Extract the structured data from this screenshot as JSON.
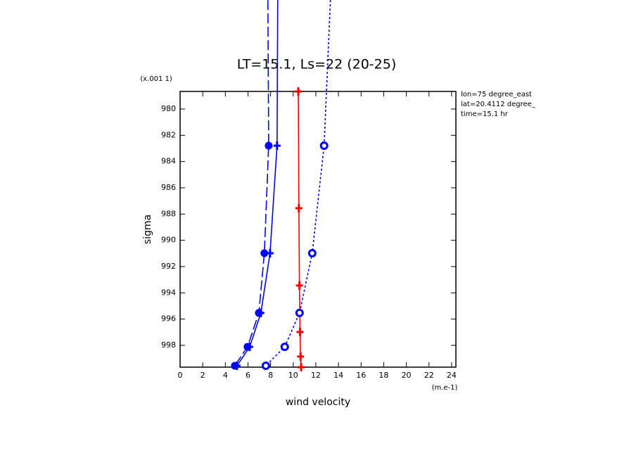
{
  "chart_data": {
    "type": "profile",
    "title": "LT=15.1, Ls=22 (20-25)",
    "x_label": "wind velocity",
    "y_label": "sigma",
    "x_unit": "(m.e-1)",
    "y_unit": "(x.001 1)",
    "annotations": [
      "lon=75 degree_east",
      "lat=20.4112 degree_",
      "time=15.1 hr"
    ],
    "xlim": [
      0,
      24.38
    ],
    "xticks": [
      0,
      2,
      4,
      6,
      8,
      10,
      12,
      14,
      16,
      18,
      20,
      22,
      24
    ],
    "ylim": [
      999.66,
      978.66
    ],
    "yticks": [
      980,
      982,
      984,
      986,
      988,
      990,
      992,
      994,
      996,
      998
    ],
    "series": [
      {
        "color": "#ff0000",
        "linestyle": "solid",
        "marker": "plus",
        "sigma": [
          978.66,
          987.55,
          993.44,
          996.98,
          998.85,
          999.66
        ],
        "values": [
          10.45,
          10.5,
          10.55,
          10.6,
          10.65,
          10.7
        ]
      },
      {
        "color": "#0000ff",
        "linestyle": "solid",
        "marker": "plus",
        "sigma": [
          971.7,
          982.79,
          990.98,
          995.53,
          998.11,
          999.55
        ],
        "values": [
          8.63,
          8.57,
          7.95,
          7.14,
          6.15,
          5.03
        ]
      },
      {
        "color": "#0000ff",
        "linestyle": "longdash",
        "marker": "circle",
        "sigma": [
          971.7,
          982.79,
          990.98,
          995.53,
          998.11,
          999.55
        ],
        "values": [
          7.76,
          7.83,
          7.45,
          6.96,
          5.96,
          4.84
        ]
      },
      {
        "color": "#0000ff",
        "linestyle": "dash",
        "marker": "open-circle",
        "sigma": [
          971.7,
          982.79,
          990.98,
          995.53,
          998.11,
          999.55
        ],
        "values": [
          13.29,
          12.73,
          11.68,
          10.56,
          9.25,
          7.58
        ]
      }
    ]
  }
}
